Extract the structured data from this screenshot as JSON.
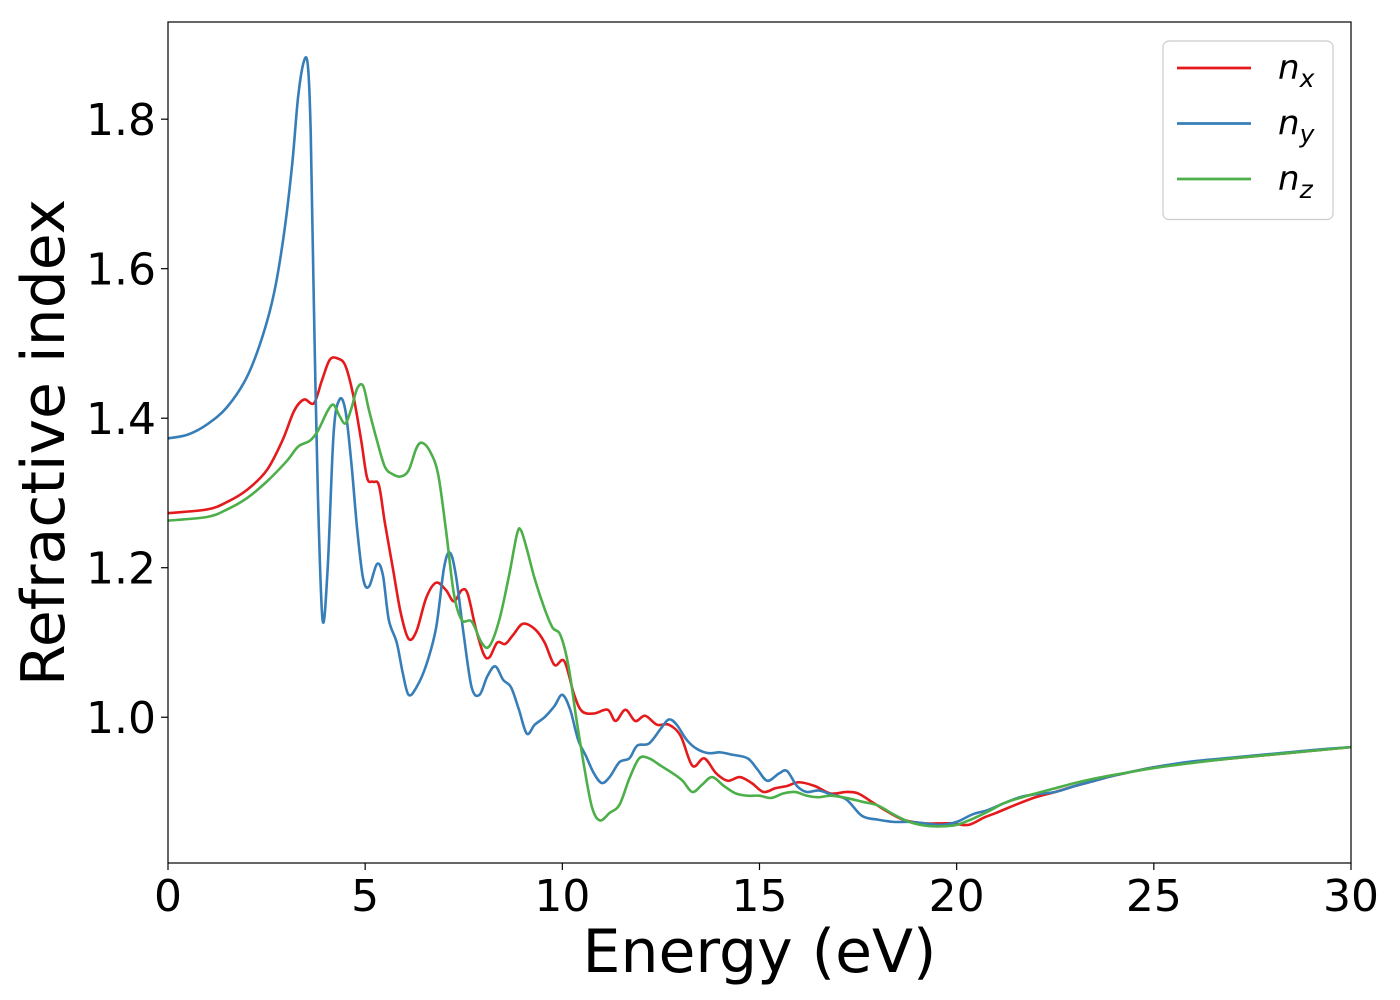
{
  "chart_data": {
    "type": "line",
    "title": "",
    "xlabel": "Energy (eV)",
    "ylabel": "Refractive index",
    "xlim": [
      0,
      30
    ],
    "ylim": [
      0.805,
      1.93
    ],
    "xticks": [
      0,
      5,
      10,
      15,
      20,
      25,
      30
    ],
    "yticks": [
      1.0,
      1.2,
      1.4,
      1.6,
      1.8
    ],
    "ytick_labels": [
      "1.0",
      "1.2",
      "1.4",
      "1.6",
      "1.8"
    ],
    "grid": false,
    "legend_position": "top-right",
    "series": [
      {
        "name": "n",
        "subscript": "x",
        "color": "#e41a1c",
        "points": [
          [
            0,
            1.273
          ],
          [
            1.0,
            1.278
          ],
          [
            1.5,
            1.288
          ],
          [
            2.0,
            1.304
          ],
          [
            2.5,
            1.33
          ],
          [
            2.9,
            1.37
          ],
          [
            3.2,
            1.41
          ],
          [
            3.45,
            1.425
          ],
          [
            3.7,
            1.42
          ],
          [
            3.9,
            1.45
          ],
          [
            4.1,
            1.478
          ],
          [
            4.3,
            1.48
          ],
          [
            4.5,
            1.47
          ],
          [
            4.7,
            1.43
          ],
          [
            4.9,
            1.37
          ],
          [
            5.05,
            1.32
          ],
          [
            5.2,
            1.315
          ],
          [
            5.35,
            1.31
          ],
          [
            5.5,
            1.26
          ],
          [
            5.7,
            1.2
          ],
          [
            5.9,
            1.14
          ],
          [
            6.1,
            1.105
          ],
          [
            6.3,
            1.115
          ],
          [
            6.55,
            1.16
          ],
          [
            6.8,
            1.18
          ],
          [
            7.05,
            1.17
          ],
          [
            7.25,
            1.155
          ],
          [
            7.45,
            1.17
          ],
          [
            7.6,
            1.165
          ],
          [
            7.8,
            1.12
          ],
          [
            8.0,
            1.085
          ],
          [
            8.15,
            1.08
          ],
          [
            8.35,
            1.1
          ],
          [
            8.55,
            1.098
          ],
          [
            8.75,
            1.11
          ],
          [
            9.0,
            1.125
          ],
          [
            9.3,
            1.118
          ],
          [
            9.55,
            1.1
          ],
          [
            9.8,
            1.07
          ],
          [
            10.05,
            1.075
          ],
          [
            10.3,
            1.03
          ],
          [
            10.5,
            1.008
          ],
          [
            10.8,
            1.005
          ],
          [
            11.15,
            1.01
          ],
          [
            11.35,
            0.995
          ],
          [
            11.6,
            1.01
          ],
          [
            11.85,
            0.995
          ],
          [
            12.1,
            1.002
          ],
          [
            12.4,
            0.99
          ],
          [
            12.7,
            0.99
          ],
          [
            13.0,
            0.975
          ],
          [
            13.3,
            0.935
          ],
          [
            13.6,
            0.945
          ],
          [
            13.9,
            0.925
          ],
          [
            14.2,
            0.915
          ],
          [
            14.5,
            0.92
          ],
          [
            14.8,
            0.912
          ],
          [
            15.1,
            0.9
          ],
          [
            15.4,
            0.905
          ],
          [
            15.7,
            0.908
          ],
          [
            16.0,
            0.913
          ],
          [
            16.4,
            0.908
          ],
          [
            16.8,
            0.898
          ],
          [
            17.2,
            0.9
          ],
          [
            17.5,
            0.898
          ],
          [
            17.9,
            0.885
          ],
          [
            18.3,
            0.872
          ],
          [
            18.7,
            0.862
          ],
          [
            19.2,
            0.858
          ],
          [
            19.6,
            0.858
          ],
          [
            19.9,
            0.858
          ],
          [
            20.3,
            0.856
          ],
          [
            20.7,
            0.866
          ],
          [
            21.0,
            0.872
          ],
          [
            21.5,
            0.883
          ],
          [
            22.0,
            0.893
          ],
          [
            22.5,
            0.9
          ],
          [
            23.0,
            0.908
          ],
          [
            23.5,
            0.915
          ],
          [
            24.0,
            0.922
          ],
          [
            25.0,
            0.933
          ],
          [
            26.0,
            0.94
          ],
          [
            27.0,
            0.945
          ],
          [
            28.0,
            0.95
          ],
          [
            29.0,
            0.955
          ],
          [
            30.0,
            0.96
          ]
        ]
      },
      {
        "name": "n",
        "subscript": "y",
        "color": "#377eb8",
        "points": [
          [
            0,
            1.373
          ],
          [
            0.5,
            1.378
          ],
          [
            1.0,
            1.392
          ],
          [
            1.5,
            1.415
          ],
          [
            2.0,
            1.455
          ],
          [
            2.4,
            1.51
          ],
          [
            2.7,
            1.57
          ],
          [
            2.95,
            1.65
          ],
          [
            3.15,
            1.74
          ],
          [
            3.3,
            1.83
          ],
          [
            3.45,
            1.878
          ],
          [
            3.55,
            1.87
          ],
          [
            3.62,
            1.78
          ],
          [
            3.7,
            1.55
          ],
          [
            3.8,
            1.3
          ],
          [
            3.92,
            1.13
          ],
          [
            4.05,
            1.2
          ],
          [
            4.2,
            1.38
          ],
          [
            4.35,
            1.425
          ],
          [
            4.5,
            1.41
          ],
          [
            4.65,
            1.34
          ],
          [
            4.8,
            1.25
          ],
          [
            4.95,
            1.185
          ],
          [
            5.1,
            1.175
          ],
          [
            5.3,
            1.205
          ],
          [
            5.45,
            1.19
          ],
          [
            5.6,
            1.13
          ],
          [
            5.8,
            1.1
          ],
          [
            5.95,
            1.06
          ],
          [
            6.1,
            1.03
          ],
          [
            6.3,
            1.04
          ],
          [
            6.55,
            1.07
          ],
          [
            6.8,
            1.12
          ],
          [
            7.0,
            1.2
          ],
          [
            7.15,
            1.22
          ],
          [
            7.3,
            1.19
          ],
          [
            7.5,
            1.11
          ],
          [
            7.7,
            1.04
          ],
          [
            7.9,
            1.03
          ],
          [
            8.1,
            1.055
          ],
          [
            8.3,
            1.068
          ],
          [
            8.5,
            1.05
          ],
          [
            8.7,
            1.04
          ],
          [
            8.9,
            1.01
          ],
          [
            9.1,
            0.978
          ],
          [
            9.3,
            0.99
          ],
          [
            9.55,
            1.0
          ],
          [
            9.8,
            1.015
          ],
          [
            10.0,
            1.03
          ],
          [
            10.2,
            1.01
          ],
          [
            10.4,
            0.97
          ],
          [
            10.6,
            0.948
          ],
          [
            10.8,
            0.925
          ],
          [
            11.0,
            0.912
          ],
          [
            11.2,
            0.92
          ],
          [
            11.45,
            0.94
          ],
          [
            11.7,
            0.945
          ],
          [
            11.9,
            0.962
          ],
          [
            12.2,
            0.965
          ],
          [
            12.5,
            0.985
          ],
          [
            12.7,
            0.997
          ],
          [
            12.9,
            0.99
          ],
          [
            13.15,
            0.97
          ],
          [
            13.4,
            0.958
          ],
          [
            13.7,
            0.952
          ],
          [
            14.0,
            0.953
          ],
          [
            14.3,
            0.95
          ],
          [
            14.7,
            0.945
          ],
          [
            14.95,
            0.93
          ],
          [
            15.2,
            0.915
          ],
          [
            15.5,
            0.925
          ],
          [
            15.7,
            0.928
          ],
          [
            15.95,
            0.908
          ],
          [
            16.2,
            0.9
          ],
          [
            16.5,
            0.902
          ],
          [
            16.8,
            0.897
          ],
          [
            17.2,
            0.89
          ],
          [
            17.6,
            0.868
          ],
          [
            18.0,
            0.863
          ],
          [
            18.4,
            0.86
          ],
          [
            18.8,
            0.86
          ],
          [
            19.2,
            0.858
          ],
          [
            19.6,
            0.856
          ],
          [
            20.0,
            0.86
          ],
          [
            20.4,
            0.87
          ],
          [
            20.8,
            0.876
          ],
          [
            21.2,
            0.885
          ],
          [
            21.6,
            0.893
          ],
          [
            22.0,
            0.897
          ],
          [
            22.5,
            0.9
          ],
          [
            23.0,
            0.908
          ],
          [
            23.5,
            0.915
          ],
          [
            24.0,
            0.922
          ],
          [
            25.0,
            0.933
          ],
          [
            26.0,
            0.941
          ],
          [
            27.0,
            0.946
          ],
          [
            28.0,
            0.951
          ],
          [
            29.0,
            0.956
          ],
          [
            30.0,
            0.96
          ]
        ]
      },
      {
        "name": "n",
        "subscript": "z",
        "color": "#4daf4a",
        "points": [
          [
            0,
            1.263
          ],
          [
            1.0,
            1.268
          ],
          [
            1.5,
            1.278
          ],
          [
            2.0,
            1.293
          ],
          [
            2.5,
            1.315
          ],
          [
            3.0,
            1.342
          ],
          [
            3.3,
            1.362
          ],
          [
            3.6,
            1.37
          ],
          [
            3.8,
            1.383
          ],
          [
            4.05,
            1.41
          ],
          [
            4.2,
            1.418
          ],
          [
            4.35,
            1.403
          ],
          [
            4.5,
            1.393
          ],
          [
            4.65,
            1.413
          ],
          [
            4.8,
            1.44
          ],
          [
            4.95,
            1.443
          ],
          [
            5.1,
            1.41
          ],
          [
            5.3,
            1.37
          ],
          [
            5.5,
            1.335
          ],
          [
            5.7,
            1.325
          ],
          [
            5.9,
            1.322
          ],
          [
            6.1,
            1.33
          ],
          [
            6.3,
            1.36
          ],
          [
            6.45,
            1.367
          ],
          [
            6.65,
            1.355
          ],
          [
            6.85,
            1.325
          ],
          [
            7.05,
            1.25
          ],
          [
            7.25,
            1.165
          ],
          [
            7.45,
            1.13
          ],
          [
            7.7,
            1.128
          ],
          [
            7.95,
            1.1
          ],
          [
            8.15,
            1.095
          ],
          [
            8.4,
            1.13
          ],
          [
            8.65,
            1.19
          ],
          [
            8.85,
            1.245
          ],
          [
            8.95,
            1.25
          ],
          [
            9.1,
            1.225
          ],
          [
            9.3,
            1.185
          ],
          [
            9.55,
            1.145
          ],
          [
            9.75,
            1.12
          ],
          [
            9.95,
            1.11
          ],
          [
            10.15,
            1.07
          ],
          [
            10.35,
            1.0
          ],
          [
            10.55,
            0.935
          ],
          [
            10.75,
            0.88
          ],
          [
            10.95,
            0.862
          ],
          [
            11.2,
            0.872
          ],
          [
            11.45,
            0.883
          ],
          [
            11.7,
            0.918
          ],
          [
            11.95,
            0.945
          ],
          [
            12.2,
            0.945
          ],
          [
            12.5,
            0.935
          ],
          [
            12.8,
            0.925
          ],
          [
            13.05,
            0.915
          ],
          [
            13.3,
            0.9
          ],
          [
            13.55,
            0.91
          ],
          [
            13.8,
            0.92
          ],
          [
            14.1,
            0.908
          ],
          [
            14.4,
            0.898
          ],
          [
            14.7,
            0.895
          ],
          [
            15.0,
            0.895
          ],
          [
            15.3,
            0.892
          ],
          [
            15.6,
            0.898
          ],
          [
            15.9,
            0.9
          ],
          [
            16.2,
            0.895
          ],
          [
            16.5,
            0.893
          ],
          [
            16.8,
            0.895
          ],
          [
            17.2,
            0.892
          ],
          [
            17.6,
            0.887
          ],
          [
            18.0,
            0.882
          ],
          [
            18.4,
            0.87
          ],
          [
            18.8,
            0.86
          ],
          [
            19.2,
            0.855
          ],
          [
            19.6,
            0.854
          ],
          [
            20.0,
            0.856
          ],
          [
            20.4,
            0.864
          ],
          [
            20.8,
            0.874
          ],
          [
            21.2,
            0.885
          ],
          [
            21.6,
            0.892
          ],
          [
            22.0,
            0.898
          ],
          [
            22.5,
            0.905
          ],
          [
            23.0,
            0.912
          ],
          [
            23.5,
            0.918
          ],
          [
            24.0,
            0.923
          ],
          [
            25.0,
            0.932
          ],
          [
            26.0,
            0.939
          ],
          [
            27.0,
            0.945
          ],
          [
            28.0,
            0.95
          ],
          [
            29.0,
            0.955
          ],
          [
            30.0,
            0.96
          ]
        ]
      }
    ]
  }
}
